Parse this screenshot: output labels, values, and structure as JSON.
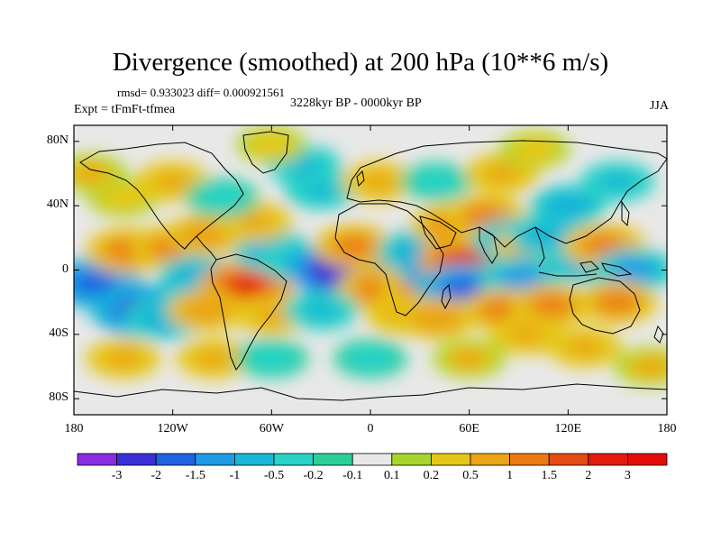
{
  "title": "Divergence (smoothed) at 200 hPa (10**6 m/s)",
  "stats": "rmsd= 0.933023 diff= 0.000921561",
  "subtitle": "3228kyr BP - 0000kyr BP",
  "experiment": "Expt = tFmFt-tfmea",
  "season": "JJA",
  "lat_labels": [
    "80N",
    "40N",
    "0",
    "40S",
    "80S"
  ],
  "lon_labels": [
    "180",
    "120W",
    "60W",
    "0",
    "60E",
    "120E",
    "180"
  ],
  "colorbar": {
    "labels": [
      "-3",
      "-2",
      "-1.5",
      "-1",
      "-0.5",
      "-0.2",
      "-0.1",
      "0.1",
      "0.2",
      "0.5",
      "1",
      "1.5",
      "2",
      "3"
    ],
    "colors": [
      "#8b2be2",
      "#3a2fd6",
      "#1f63e0",
      "#1f9ae6",
      "#18b6d8",
      "#28d2c6",
      "#2bcf96",
      "#e8e8e8",
      "#a6d62b",
      "#e6c719",
      "#eba416",
      "#ec7a12",
      "#e54a10",
      "#e41a0d",
      "#e60b0b"
    ]
  },
  "anomalies": [
    {
      "lon": -167,
      "lat": -8,
      "value": -2.0
    },
    {
      "lon": -147,
      "lat": 12,
      "value": 1.3
    },
    {
      "lon": -120,
      "lat": 14,
      "value": 1.2
    },
    {
      "lon": -105,
      "lat": -4,
      "value": -0.9
    },
    {
      "lon": -75,
      "lat": -10,
      "value": 2.0
    },
    {
      "lon": -60,
      "lat": 12,
      "value": -0.9
    },
    {
      "lon": -45,
      "lat": 5,
      "value": -0.6
    },
    {
      "lon": -100,
      "lat": 22,
      "value": 0.8
    },
    {
      "lon": -70,
      "lat": 30,
      "value": 0.6
    },
    {
      "lon": -15,
      "lat": 0,
      "value": -3.0
    },
    {
      "lon": 5,
      "lat": -12,
      "value": 1.3
    },
    {
      "lon": -10,
      "lat": 15,
      "value": 1.0
    },
    {
      "lon": 28,
      "lat": 12,
      "value": -0.8
    },
    {
      "lon": 30,
      "lat": -12,
      "value": 1.0
    },
    {
      "lon": 45,
      "lat": 2,
      "value": -2.0
    },
    {
      "lon": 62,
      "lat": 5,
      "value": 2.8
    },
    {
      "lon": 57,
      "lat": -12,
      "value": -2.0
    },
    {
      "lon": 50,
      "lat": 28,
      "value": 1.2
    },
    {
      "lon": 70,
      "lat": 33,
      "value": 1.2
    },
    {
      "lon": 88,
      "lat": 18,
      "value": -1.4
    },
    {
      "lon": 100,
      "lat": 15,
      "value": 1.2
    },
    {
      "lon": 92,
      "lat": -5,
      "value": -1.2
    },
    {
      "lon": 108,
      "lat": 22,
      "value": -0.9
    },
    {
      "lon": 120,
      "lat": 40,
      "value": -0.8
    },
    {
      "lon": 130,
      "lat": 5,
      "value": -0.9
    },
    {
      "lon": 142,
      "lat": 15,
      "value": 1.2
    },
    {
      "lon": 160,
      "lat": 0,
      "value": -1.1
    },
    {
      "lon": 80,
      "lat": -25,
      "value": 1.0
    },
    {
      "lon": 110,
      "lat": -22,
      "value": 1.0
    },
    {
      "lon": 150,
      "lat": -20,
      "value": 1.0
    },
    {
      "lon": -140,
      "lat": -25,
      "value": -2.2
    },
    {
      "lon": -125,
      "lat": -30,
      "value": -1.0
    },
    {
      "lon": -100,
      "lat": -25,
      "value": 0.8
    },
    {
      "lon": -60,
      "lat": -28,
      "value": 0.6
    },
    {
      "lon": -30,
      "lat": -25,
      "value": -0.6
    },
    {
      "lon": 20,
      "lat": -28,
      "value": 0.6
    },
    {
      "lon": 40,
      "lat": -30,
      "value": 0.8
    },
    {
      "lon": 95,
      "lat": -40,
      "value": 0.6
    },
    {
      "lon": 130,
      "lat": -48,
      "value": 0.6
    },
    {
      "lon": -150,
      "lat": -55,
      "value": 0.6
    },
    {
      "lon": -95,
      "lat": -55,
      "value": 0.6
    },
    {
      "lon": -60,
      "lat": -55,
      "value": -0.5
    },
    {
      "lon": 0,
      "lat": -55,
      "value": -0.5
    },
    {
      "lon": 60,
      "lat": -55,
      "value": 0.5
    },
    {
      "lon": 170,
      "lat": -60,
      "value": 0.5
    },
    {
      "lon": -150,
      "lat": 45,
      "value": 0.4
    },
    {
      "lon": -120,
      "lat": 55,
      "value": 0.6
    },
    {
      "lon": -90,
      "lat": 45,
      "value": -0.5
    },
    {
      "lon": -30,
      "lat": 50,
      "value": -0.6
    },
    {
      "lon": -40,
      "lat": 65,
      "value": -0.6
    },
    {
      "lon": 5,
      "lat": 55,
      "value": 0.6
    },
    {
      "lon": 40,
      "lat": 55,
      "value": -0.4
    },
    {
      "lon": 80,
      "lat": 60,
      "value": 0.6
    },
    {
      "lon": 150,
      "lat": 55,
      "value": -0.6
    },
    {
      "lon": -170,
      "lat": 60,
      "value": 0.5
    },
    {
      "lon": 100,
      "lat": 75,
      "value": 0.3
    },
    {
      "lon": -60,
      "lat": 78,
      "value": 0.3
    }
  ]
}
